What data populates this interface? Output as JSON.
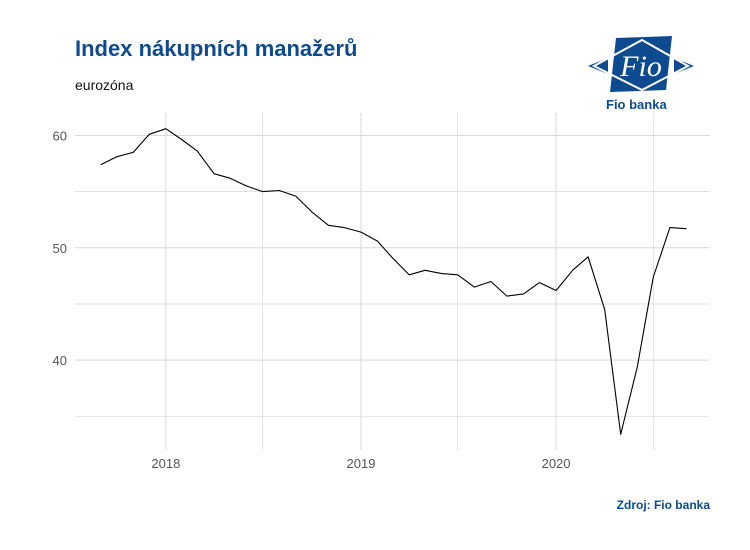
{
  "header": {
    "title": "Index nákupních manažerů",
    "subtitle": "eurozóna"
  },
  "logo": {
    "text": "Fio",
    "name": "Fio banka"
  },
  "footer": {
    "source": "Zdroj: Fio banka"
  },
  "colors": {
    "brand": "#0d4a8f",
    "line": "#000000",
    "grid": "#d9d9d9"
  },
  "chart_data": {
    "type": "line",
    "title": "Index nákupních manažerů",
    "subtitle": "eurozóna",
    "xlabel": "",
    "ylabel": "",
    "ylim": [
      32,
      62
    ],
    "xlim": [
      "2017-07-15",
      "2020-10-15"
    ],
    "x_ticks": [
      "2018",
      "2019",
      "2020"
    ],
    "y_ticks": [
      40,
      50,
      60
    ],
    "grid": true,
    "legend": "none",
    "series": [
      {
        "x": [
          "2017-09",
          "2017-10",
          "2017-11",
          "2017-12",
          "2018-01",
          "2018-02",
          "2018-03",
          "2018-04",
          "2018-05",
          "2018-06",
          "2018-07",
          "2018-08",
          "2018-09",
          "2018-10",
          "2018-11",
          "2018-12",
          "2019-01",
          "2019-02",
          "2019-03",
          "2019-04",
          "2019-05",
          "2019-06",
          "2019-07",
          "2019-08",
          "2019-09",
          "2019-10",
          "2019-11",
          "2019-12",
          "2020-01",
          "2020-02",
          "2020-03",
          "2020-04",
          "2020-05",
          "2020-06",
          "2020-07",
          "2020-08",
          "2020-09"
        ],
        "values": [
          57.4,
          58.1,
          58.5,
          60.1,
          60.6,
          59.6,
          58.6,
          56.6,
          56.2,
          55.5,
          55.0,
          55.1,
          54.6,
          53.2,
          52.0,
          51.8,
          51.4,
          50.6,
          49.1,
          47.6,
          48.0,
          47.7,
          47.6,
          46.5,
          47.0,
          45.7,
          45.9,
          46.9,
          46.2,
          48.0,
          49.2,
          44.5,
          33.4,
          39.4,
          47.4,
          51.8,
          51.7
        ]
      }
    ]
  }
}
